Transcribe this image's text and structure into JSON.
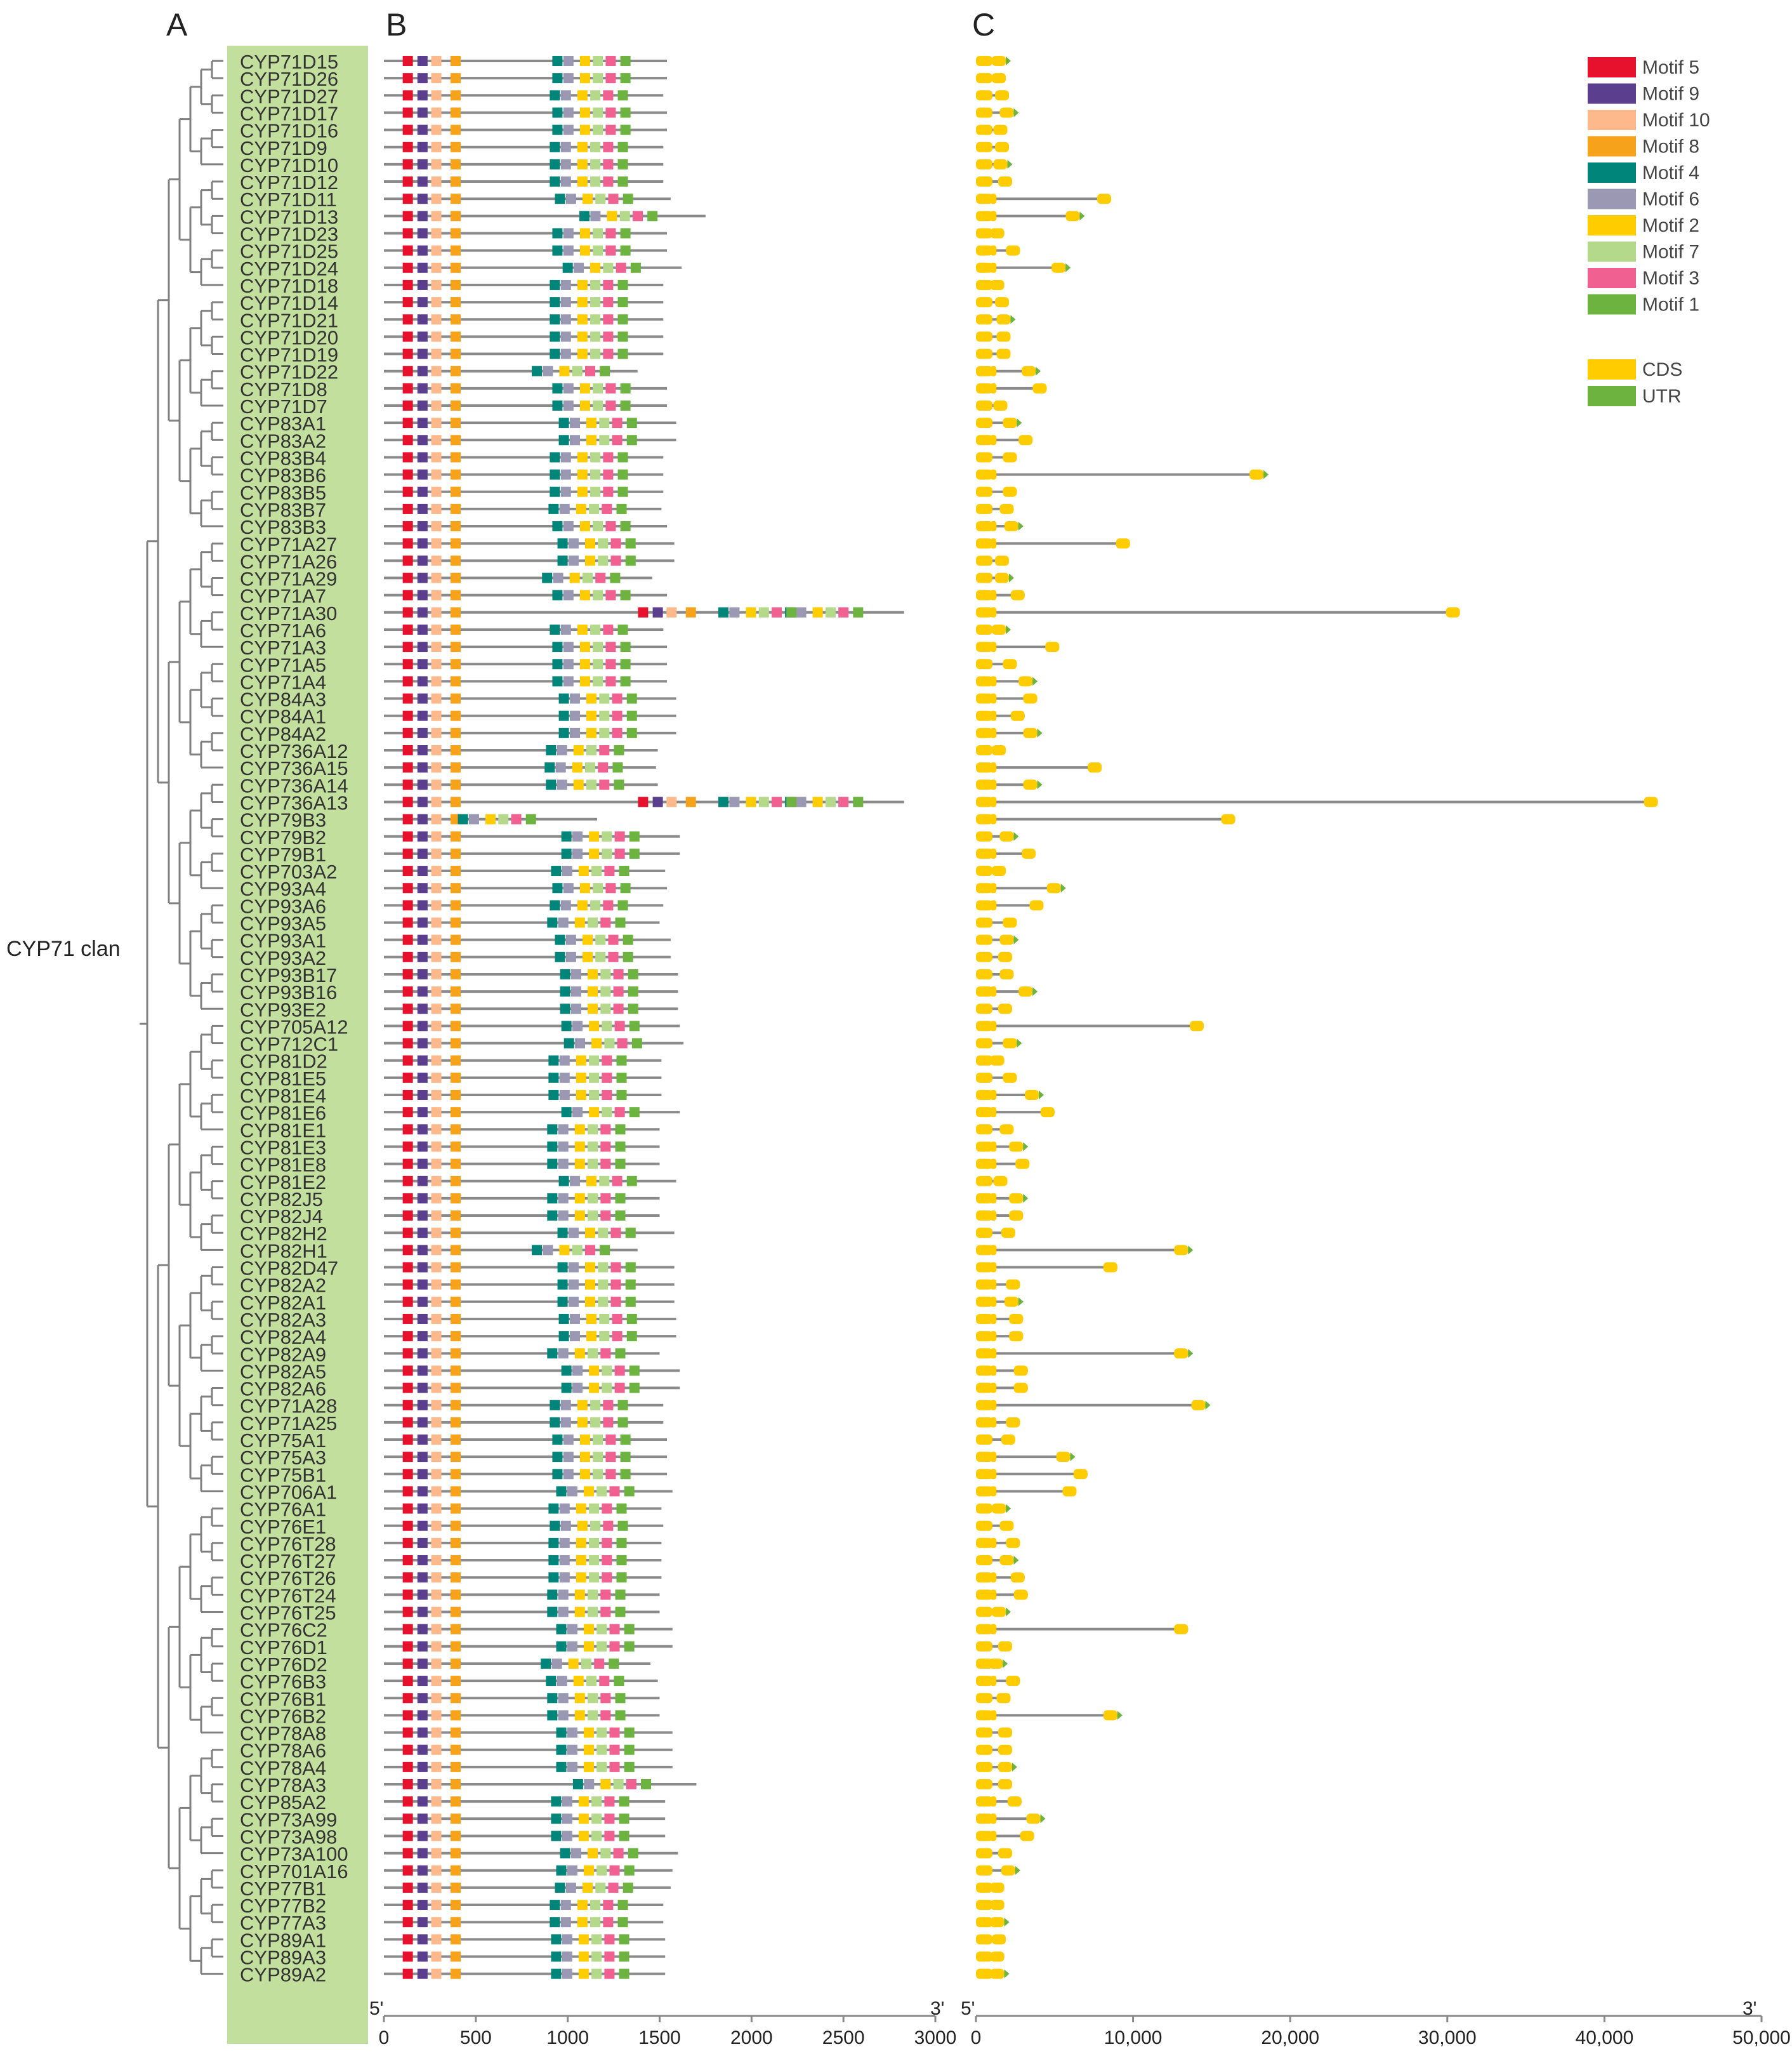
{
  "panels": {
    "a": "A",
    "b": "B",
    "c": "C"
  },
  "clan_label": "CYP71 clan",
  "genes": [
    "CYP71D15",
    "CYP71D26",
    "CYP71D27",
    "CYP71D17",
    "CYP71D16",
    "CYP71D9",
    "CYP71D10",
    "CYP71D12",
    "CYP71D11",
    "CYP71D13",
    "CYP71D23",
    "CYP71D25",
    "CYP71D24",
    "CYP71D18",
    "CYP71D14",
    "CYP71D21",
    "CYP71D20",
    "CYP71D19",
    "CYP71D22",
    "CYP71D8",
    "CYP71D7",
    "CYP83A1",
    "CYP83A2",
    "CYP83B4",
    "CYP83B6",
    "CYP83B5",
    "CYP83B7",
    "CYP83B3",
    "CYP71A27",
    "CYP71A26",
    "CYP71A29",
    "CYP71A7",
    "CYP71A30",
    "CYP71A6",
    "CYP71A3",
    "CYP71A5",
    "CYP71A4",
    "CYP84A3",
    "CYP84A1",
    "CYP84A2",
    "CYP736A12",
    "CYP736A15",
    "CYP736A14",
    "CYP736A13",
    "CYP79B3",
    "CYP79B2",
    "CYP79B1",
    "CYP703A2",
    "CYP93A4",
    "CYP93A6",
    "CYP93A5",
    "CYP93A1",
    "CYP93A2",
    "CYP93B17",
    "CYP93B16",
    "CYP93E2",
    "CYP705A12",
    "CYP712C1",
    "CYP81D2",
    "CYP81E5",
    "CYP81E4",
    "CYP81E6",
    "CYP81E1",
    "CYP81E3",
    "CYP81E8",
    "CYP81E2",
    "CYP82J5",
    "CYP82J4",
    "CYP82H2",
    "CYP82H1",
    "CYP82D47",
    "CYP82A2",
    "CYP82A1",
    "CYP82A3",
    "CYP82A4",
    "CYP82A9",
    "CYP82A5",
    "CYP82A6",
    "CYP71A28",
    "CYP71A25",
    "CYP75A1",
    "CYP75A3",
    "CYP75B1",
    "CYP706A1",
    "CYP76A1",
    "CYP76E1",
    "CYP76T28",
    "CYP76T27",
    "CYP76T26",
    "CYP76T24",
    "CYP76T25",
    "CYP76C2",
    "CYP76D1",
    "CYP76D2",
    "CYP76B3",
    "CYP76B1",
    "CYP76B2",
    "CYP78A8",
    "CYP78A6",
    "CYP78A4",
    "CYP78A3",
    "CYP85A2",
    "CYP73A99",
    "CYP73A98",
    "CYP73A100",
    "CYP701A16",
    "CYP77B1",
    "CYP77B2",
    "CYP77A3",
    "CYP89A1",
    "CYP89A3",
    "CYP89A2"
  ],
  "motif_legend": [
    {
      "label": "Motif 5",
      "color": "#e8112d"
    },
    {
      "label": "Motif 9",
      "color": "#5b3e8e"
    },
    {
      "label": "Motif 10",
      "color": "#fdb98b"
    },
    {
      "label": "Motif 8",
      "color": "#f7a21b"
    },
    {
      "label": "Motif 4",
      "color": "#00857a"
    },
    {
      "label": "Motif 6",
      "color": "#9b98b3"
    },
    {
      "label": "Motif 2",
      "color": "#ffcc00"
    },
    {
      "label": "Motif 7",
      "color": "#b5d98a"
    },
    {
      "label": "Motif 3",
      "color": "#f06090"
    },
    {
      "label": "Motif 1",
      "color": "#6cb33f"
    }
  ],
  "gene_legend": [
    {
      "label": "CDS",
      "color": "#ffcc00"
    },
    {
      "label": "UTR",
      "color": "#6cb33f"
    }
  ],
  "axis_b": {
    "ticks": [
      "0",
      "500",
      "1000",
      "1500",
      "2000",
      "2500",
      "3000"
    ],
    "tick_values": [
      0,
      500,
      1000,
      1500,
      2000,
      2500,
      3000
    ],
    "max": 3000,
    "start_label": "5'",
    "end_label": "3'"
  },
  "axis_c": {
    "ticks": [
      "0",
      "10,000",
      "20,000",
      "30,000",
      "40,000",
      "50,000"
    ],
    "tick_values": [
      0,
      10000,
      20000,
      30000,
      40000,
      50000
    ],
    "max": 50000,
    "start_label": "5'",
    "end_label": "3'"
  },
  "chart_data": {
    "type": "motif-and-gene-structure",
    "protein_lengths": [
      1540,
      1540,
      1520,
      1540,
      1540,
      1520,
      1520,
      1520,
      1560,
      1750,
      1540,
      1540,
      1620,
      1520,
      1520,
      1520,
      1520,
      1520,
      1380,
      1540,
      1540,
      1590,
      1590,
      1520,
      1520,
      1520,
      1510,
      1540,
      1580,
      1580,
      1460,
      1540,
      2830,
      1520,
      1540,
      1540,
      1540,
      1590,
      1590,
      1590,
      1490,
      1480,
      1490,
      2830,
      1160,
      1610,
      1610,
      1530,
      1540,
      1520,
      1500,
      1560,
      1560,
      1600,
      1600,
      1600,
      1610,
      1630,
      1510,
      1510,
      1510,
      1610,
      1500,
      1500,
      1500,
      1590,
      1500,
      1500,
      1580,
      1380,
      1580,
      1580,
      1580,
      1590,
      1590,
      1500,
      1610,
      1610,
      1520,
      1520,
      1540,
      1540,
      1540,
      1570,
      1510,
      1520,
      1510,
      1510,
      1510,
      1500,
      1500,
      1570,
      1570,
      1450,
      1490,
      1500,
      1500,
      1570,
      1570,
      1570,
      1700,
      1530,
      1530,
      1530,
      1600,
      1570,
      1560,
      1520,
      1520,
      1530,
      1530,
      1530
    ],
    "gene_lengths": [
      1900,
      1900,
      2100,
      2400,
      2000,
      2100,
      2000,
      2300,
      8600,
      6600,
      1800,
      2800,
      5700,
      1800,
      2100,
      2200,
      2200,
      2200,
      3800,
      4500,
      2000,
      2600,
      3600,
      2600,
      18300,
      2600,
      2400,
      2700,
      9800,
      2100,
      2100,
      3100,
      30800,
      1900,
      5300,
      2600,
      3600,
      3900,
      3100,
      3900,
      1900,
      8000,
      3900,
      43400,
      16500,
      2400,
      3800,
      1900,
      5400,
      4300,
      2600,
      2400,
      2300,
      2400,
      3600,
      2300,
      14500,
      2600,
      1800,
      2600,
      4000,
      5000,
      2400,
      3000,
      3400,
      2000,
      3000,
      3000,
      2500,
      13500,
      9000,
      2800,
      2700,
      3000,
      3000,
      13500,
      3300,
      3300,
      14600,
      2800,
      2500,
      6000,
      7100,
      6400,
      1900,
      2400,
      2800,
      2400,
      3100,
      3300,
      1900,
      13500,
      2300,
      1700,
      2800,
      2200,
      9000,
      2300,
      2300,
      2300,
      2300,
      2900,
      4100,
      3700,
      2300,
      2500,
      1800,
      1800,
      1800,
      1900,
      1800,
      1800
    ]
  }
}
